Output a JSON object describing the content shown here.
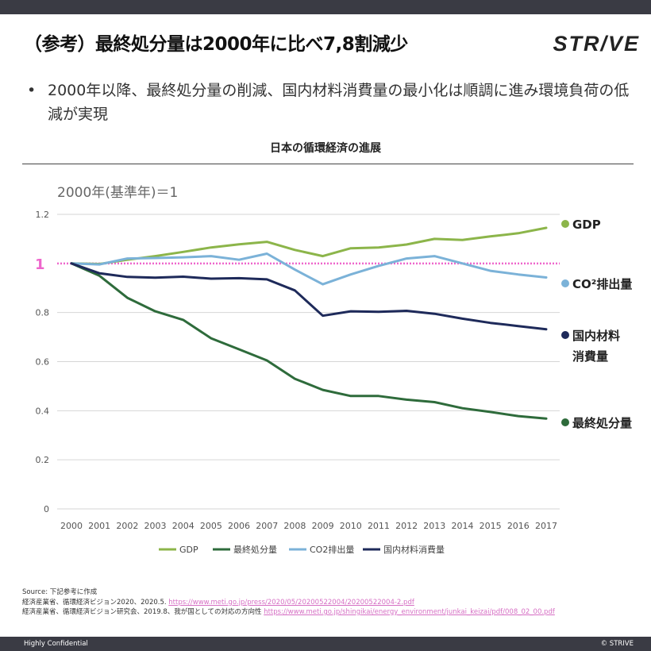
{
  "page": {
    "title": "（参考）最終処分量は2000年に比べ7,8割減少",
    "logo": "STR/VE",
    "bullet": "2000年以降、最終処分量の削減、国内材料消費量の最小化は順調に進み環境負荷の低減が実現",
    "bullet_marker": "•"
  },
  "chart_data": {
    "type": "line",
    "title": "日本の循環経済の進展",
    "subtitle": "2000年(基準年)＝1",
    "baseline_label": "1",
    "baseline_value": 1,
    "xlabel": "",
    "ylabel": "",
    "ylim": [
      0,
      1.2
    ],
    "yticks": [
      0,
      0.2,
      0.4,
      0.6,
      0.8,
      1.2
    ],
    "ytick_labels": [
      "0",
      "0.2",
      "0.4",
      "0.6",
      "0.8",
      "1.2"
    ],
    "categories": [
      "2000",
      "2001",
      "2002",
      "2003",
      "2004",
      "2005",
      "2006",
      "2007",
      "2008",
      "2009",
      "2010",
      "2011",
      "2012",
      "2013",
      "2014",
      "2015",
      "2016",
      "2017"
    ],
    "series": [
      {
        "name": "GDP",
        "label": "GDP",
        "color": "#8cb54a",
        "values": [
          1.0,
          0.998,
          1.015,
          1.03,
          1.047,
          1.065,
          1.078,
          1.088,
          1.055,
          1.03,
          1.062,
          1.065,
          1.077,
          1.1,
          1.096,
          1.11,
          1.123,
          1.145
        ]
      },
      {
        "name": "最終処分量",
        "label": "最終処分量",
        "color": "#2e6b3b",
        "values": [
          1.0,
          0.95,
          0.86,
          0.805,
          0.77,
          0.695,
          0.65,
          0.605,
          0.53,
          0.485,
          0.46,
          0.46,
          0.445,
          0.435,
          0.41,
          0.395,
          0.378,
          0.368
        ]
      },
      {
        "name": "CO2排出量",
        "label": "CO²排出量",
        "color": "#7bb2d8",
        "values": [
          1.0,
          0.996,
          1.02,
          1.022,
          1.025,
          1.03,
          1.015,
          1.04,
          0.975,
          0.915,
          0.955,
          0.99,
          1.02,
          1.03,
          1.0,
          0.97,
          0.955,
          0.943
        ]
      },
      {
        "name": "国内材料消費量",
        "label": "国内材料消費量",
        "color": "#1e2a5a",
        "values": [
          1.0,
          0.96,
          0.945,
          0.942,
          0.946,
          0.938,
          0.94,
          0.935,
          0.89,
          0.787,
          0.805,
          0.803,
          0.807,
          0.795,
          0.775,
          0.758,
          0.745,
          0.732
        ]
      }
    ],
    "side_labels": [
      "GDP",
      "CO²排出量",
      "国内材料消費量",
      "最終処分量"
    ],
    "legend_position": "bottom",
    "legend": [
      "GDP",
      "最終処分量",
      "CO2排出量",
      "国内材料消費量"
    ]
  },
  "source": {
    "heading": "Source: 下記参考に作成",
    "line1_text": "経済産業省、循環経済ビジョン2020、2020.5.",
    "line1_link": "https://www.meti.go.jp/press/2020/05/20200522004/20200522004-2.pdf",
    "line2_text": "経済産業省、循環経済ビジョン研究会、2019.8、我が国としての対応の方向性",
    "line2_link": "https://www.meti.go.jp/shingikai/energy_environment/junkai_keizai/pdf/008_02_00.pdf"
  },
  "footer": {
    "left": "Highly Confidential",
    "right": "© STRIVE"
  }
}
